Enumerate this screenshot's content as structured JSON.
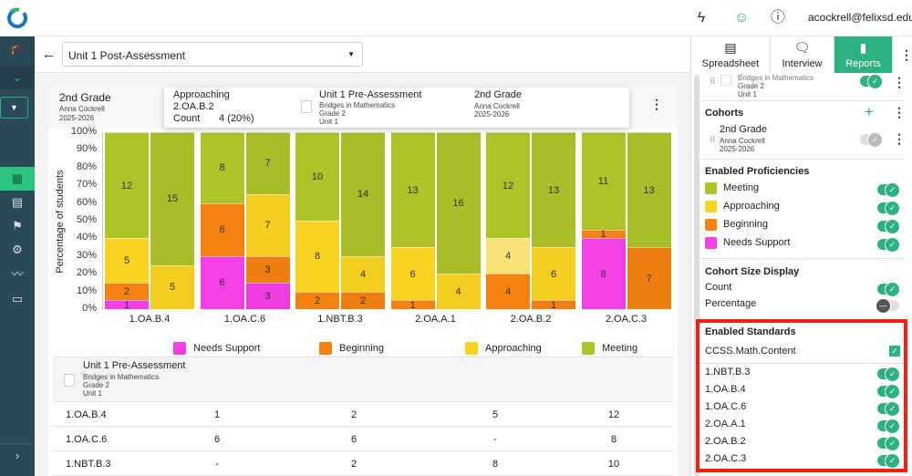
{
  "topbar": {
    "user": "acockrell@felixsd.edu",
    "icons": [
      "bolt-icon",
      "avatar-icon",
      "help-icon"
    ]
  },
  "header": {
    "assessment_select": "Unit 1 Post-Assessment"
  },
  "card": {
    "title": "2nd Grade",
    "teacher": "Anna Cockrell",
    "year": "2025-2026"
  },
  "colors": {
    "Needs Support": "#f53fe6",
    "Beginning": "#f5820f",
    "Approaching": "#fad323",
    "Meeting": "#aec22a",
    "accent": "#2db17e",
    "sidebar": "#2a4a5a"
  },
  "chart_data": {
    "type": "bar",
    "stacked": true,
    "ylabel": "Percentage of students",
    "ylim": [
      0,
      100
    ],
    "yticks": [
      "0%",
      "10%",
      "20%",
      "30%",
      "40%",
      "50%",
      "60%",
      "70%",
      "80%",
      "90%",
      "100%"
    ],
    "categories": [
      "1.OA.B.4",
      "1.OA.C.6",
      "1.NBT.B.3",
      "2.OA.A.1",
      "2.OA.B.2",
      "2.OA.C.3"
    ],
    "series_order": [
      "Needs Support",
      "Beginning",
      "Approaching",
      "Meeting"
    ],
    "legend": [
      "Needs Support",
      "Beginning",
      "Approaching",
      "Meeting"
    ],
    "legend_position": "bottom",
    "pre": [
      [
        1,
        2,
        5,
        12
      ],
      [
        6,
        6,
        0,
        8
      ],
      [
        0,
        2,
        8,
        10
      ],
      [
        0,
        1,
        6,
        13
      ],
      [
        0,
        4,
        4,
        12
      ],
      [
        8,
        1,
        0,
        11
      ]
    ],
    "post": [
      [
        0,
        0,
        5,
        15
      ],
      [
        3,
        3,
        7,
        7
      ],
      [
        0,
        2,
        4,
        14
      ],
      [
        0,
        0,
        4,
        16
      ],
      [
        0,
        1,
        6,
        13
      ],
      [
        0,
        7,
        0,
        13
      ]
    ]
  },
  "table": {
    "assessment": "Unit 1 Pre-Assessment",
    "program": "Bridges in Mathematics",
    "grade": "Grade 2",
    "unit": "Unit 1",
    "rows": [
      [
        "1.OA.B.4",
        "1",
        "2",
        "5",
        "12"
      ],
      [
        "1.OA.C.6",
        "6",
        "6",
        "-",
        "8"
      ],
      [
        "1.NBT.B.3",
        "-",
        "2",
        "8",
        "10"
      ]
    ]
  },
  "tooltip": {
    "proficiency": "Approaching",
    "assessment": "Unit 1 Pre-Assessment",
    "program": "Bridges in Mathematics",
    "grade": "Grade 2",
    "unit": "Unit 1",
    "standard": "2.OA.B.2",
    "count_label": "Count",
    "count_value": "4 (20%)",
    "cohort": "2nd Grade",
    "teacher": "Anna Cockrell",
    "year": "2025-2026"
  },
  "panel": {
    "tabs": [
      "Spreadsheet",
      "Interview",
      "Reports"
    ],
    "assessment_item": {
      "program": "Bridges in Mathematics",
      "grade": "Grade 2",
      "unit": "Unit 1"
    },
    "cohorts_title": "Cohorts",
    "cohort": {
      "name": "2nd Grade",
      "teacher": "Anna Cockrell",
      "year": "2025-2026"
    },
    "proficiencies_title": "Enabled Proficiencies",
    "proficiencies": [
      "Meeting",
      "Approaching",
      "Beginning",
      "Needs Support"
    ],
    "size_title": "Cohort Size Display",
    "size_count": "Count",
    "size_percentage": "Percentage",
    "standards_title": "Enabled Standards",
    "standards_group": "CCSS.Math.Content",
    "standards": [
      "1.NBT.B.3",
      "1.OA.B.4",
      "1.OA.C.6",
      "2.OA.A.1",
      "2.OA.B.2",
      "2.OA.C.3"
    ]
  }
}
